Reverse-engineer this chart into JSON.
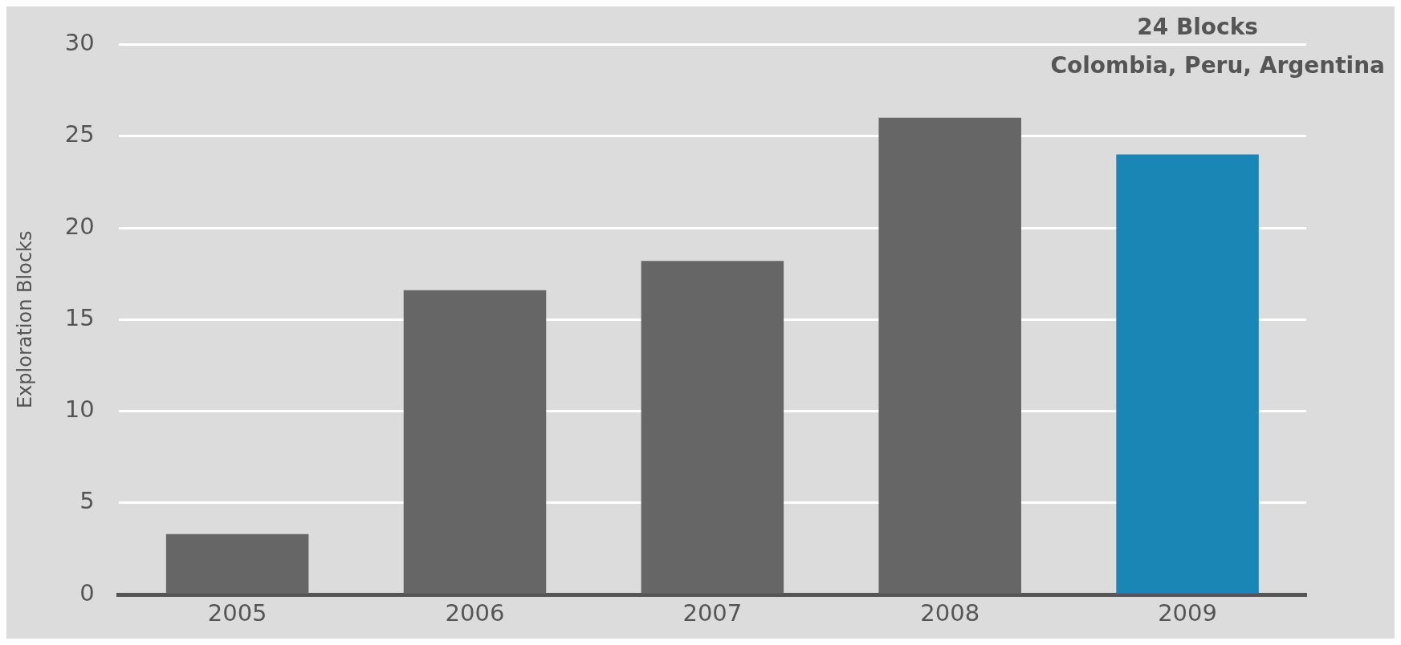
{
  "chart_data": {
    "type": "bar",
    "ylabel": "Exploration Blocks",
    "categories": [
      "2005",
      "2006",
      "2007",
      "2008",
      "2009"
    ],
    "values": [
      3.3,
      16.6,
      18.2,
      26,
      24
    ],
    "colors": [
      "#666666",
      "#666666",
      "#666666",
      "#666666",
      "#1a86b6"
    ],
    "ylim": [
      0,
      30
    ],
    "yticks": [
      0,
      5,
      10,
      15,
      20,
      25,
      30
    ],
    "grid": "y",
    "legend": false,
    "annotations": [
      "24 Blocks",
      "Colombia, Peru, Argentina"
    ]
  }
}
